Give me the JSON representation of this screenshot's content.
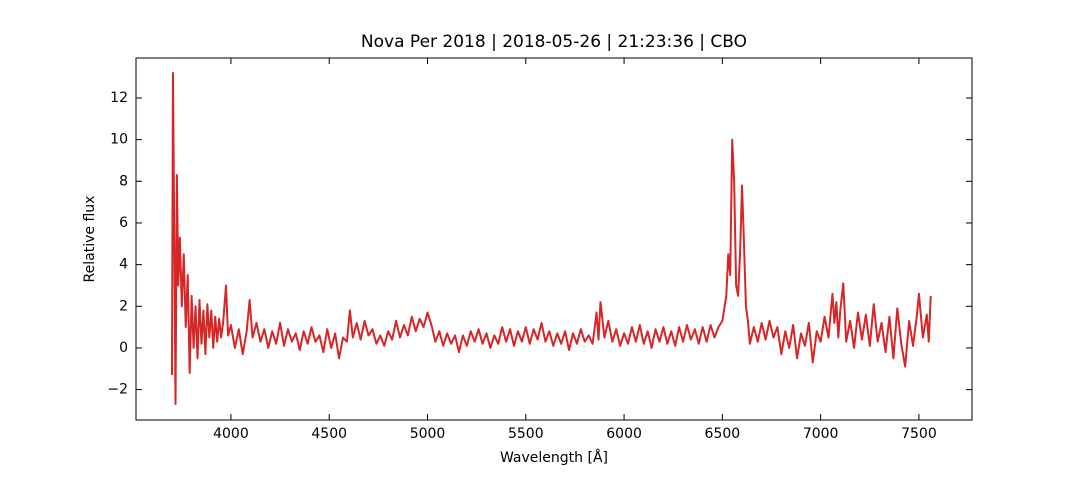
{
  "chart_data": {
    "type": "line",
    "title": "Nova Per 2018 | 2018-05-26 | 21:23:36 | CBO",
    "x_label": "Wavelength [Å]",
    "y_label": "Relative flux",
    "color": "#d62728",
    "xlim": [
      3517,
      7770
    ],
    "xticks": [
      4000,
      4500,
      5000,
      5500,
      6000,
      6500,
      7000,
      7500
    ],
    "ylim": [
      -3.46,
      13.92
    ],
    "yticks": [
      {
        "value": -2,
        "label": "−2"
      },
      0,
      2,
      4,
      6,
      8,
      10,
      12
    ],
    "x": [
      3700,
      3705,
      3712,
      3718,
      3725,
      3732,
      3740,
      3750,
      3760,
      3770,
      3780,
      3790,
      3800,
      3810,
      3820,
      3830,
      3840,
      3850,
      3860,
      3870,
      3880,
      3890,
      3900,
      3910,
      3920,
      3930,
      3940,
      3950,
      3960,
      3975,
      3985,
      4000,
      4020,
      4040,
      4060,
      4080,
      4095,
      4110,
      4130,
      4150,
      4170,
      4190,
      4210,
      4230,
      4250,
      4270,
      4290,
      4310,
      4330,
      4350,
      4370,
      4390,
      4410,
      4430,
      4450,
      4470,
      4490,
      4510,
      4530,
      4550,
      4570,
      4590,
      4605,
      4620,
      4640,
      4660,
      4680,
      4700,
      4720,
      4740,
      4760,
      4780,
      4800,
      4820,
      4840,
      4860,
      4880,
      4900,
      4920,
      4940,
      4960,
      4980,
      5000,
      5020,
      5040,
      5060,
      5080,
      5100,
      5120,
      5140,
      5160,
      5180,
      5200,
      5220,
      5240,
      5260,
      5280,
      5300,
      5320,
      5340,
      5360,
      5380,
      5400,
      5420,
      5440,
      5460,
      5480,
      5500,
      5520,
      5540,
      5560,
      5580,
      5600,
      5620,
      5640,
      5660,
      5680,
      5700,
      5720,
      5740,
      5760,
      5780,
      5800,
      5820,
      5840,
      5860,
      5870,
      5880,
      5900,
      5920,
      5940,
      5960,
      5980,
      6000,
      6020,
      6040,
      6060,
      6080,
      6100,
      6120,
      6140,
      6160,
      6180,
      6200,
      6220,
      6240,
      6260,
      6280,
      6300,
      6320,
      6340,
      6360,
      6380,
      6400,
      6420,
      6440,
      6460,
      6480,
      6500,
      6520,
      6530,
      6540,
      6550,
      6560,
      6570,
      6580,
      6590,
      6600,
      6610,
      6620,
      6630,
      6640,
      6660,
      6680,
      6700,
      6720,
      6740,
      6760,
      6780,
      6800,
      6820,
      6840,
      6860,
      6880,
      6900,
      6920,
      6940,
      6960,
      6980,
      7000,
      7020,
      7040,
      7060,
      7070,
      7080,
      7090,
      7100,
      7115,
      7130,
      7150,
      7170,
      7190,
      7210,
      7230,
      7250,
      7270,
      7290,
      7310,
      7330,
      7350,
      7370,
      7390,
      7410,
      7430,
      7450,
      7470,
      7490,
      7500,
      7520,
      7540,
      7550,
      7560
    ],
    "values": [
      -1.3,
      13.2,
      5,
      -2.7,
      8.3,
      3,
      5.3,
      2,
      4.5,
      1,
      3.5,
      -1.2,
      2.5,
      0,
      2,
      -0.5,
      2.3,
      0.2,
      1.8,
      -0.3,
      2.1,
      0.5,
      1.8,
      0,
      1.5,
      0.3,
      1.4,
      0.5,
      1.2,
      3.0,
      0.6,
      1.1,
      0,
      0.9,
      -0.3,
      0.8,
      2.3,
      0.5,
      1.2,
      0.3,
      0.9,
      0,
      0.8,
      0.2,
      1.2,
      0.1,
      0.9,
      0.3,
      0.7,
      -0.1,
      0.8,
      0.2,
      1.0,
      0.3,
      0.6,
      -0.2,
      0.9,
      0,
      0.7,
      -0.5,
      0.5,
      0.3,
      1.8,
      0.5,
      1.2,
      0.4,
      1.3,
      0.6,
      0.9,
      0.2,
      0.6,
      0.1,
      0.8,
      0.4,
      1.3,
      0.5,
      1.1,
      0.6,
      1.5,
      0.8,
      1.4,
      1.0,
      1.7,
      1.1,
      0.3,
      0.8,
      0.1,
      0.7,
      0.2,
      0.6,
      -0.2,
      0.6,
      0.1,
      0.8,
      0.3,
      0.9,
      0.2,
      0.7,
      0,
      0.6,
      0.2,
      1.0,
      0.3,
      0.9,
      0.1,
      0.8,
      0.3,
      1.0,
      0.2,
      0.9,
      0.4,
      1.2,
      0.3,
      0.8,
      0.1,
      0.7,
      0.2,
      0.8,
      -0.1,
      0.7,
      0.2,
      0.9,
      0.3,
      0.6,
      0.2,
      1.7,
      0.4,
      2.2,
      0.5,
      1.3,
      0.3,
      0.9,
      0.1,
      0.7,
      0.2,
      1.0,
      0.3,
      1.1,
      0.2,
      0.8,
      0,
      0.9,
      0.3,
      1.0,
      0.2,
      0.8,
      0.1,
      1.0,
      0.3,
      1.1,
      0.4,
      0.9,
      0.2,
      1.0,
      0.3,
      1.1,
      0.5,
      1.0,
      1.3,
      2.5,
      4.5,
      3.5,
      10.0,
      8.0,
      3.0,
      2.5,
      4.5,
      7.8,
      5,
      2.0,
      1.3,
      0.2,
      1.0,
      0.3,
      1.2,
      0.4,
      1.3,
      0.5,
      1.0,
      -0.3,
      0.8,
      0,
      1.1,
      -0.5,
      0.7,
      0.1,
      1.2,
      -0.7,
      0.8,
      0.3,
      1.5,
      0.5,
      2.6,
      1.2,
      2.2,
      0.5,
      1.8,
      3.1,
      0.3,
      1.3,
      0,
      1.7,
      0.4,
      1.6,
      0.1,
      2.1,
      0.3,
      1.2,
      -0.2,
      1.5,
      -0.5,
      1.9,
      0.2,
      -0.9,
      1.3,
      0.1,
      1.6,
      2.6,
      0.5,
      1.6,
      0.3,
      2.5
    ]
  }
}
